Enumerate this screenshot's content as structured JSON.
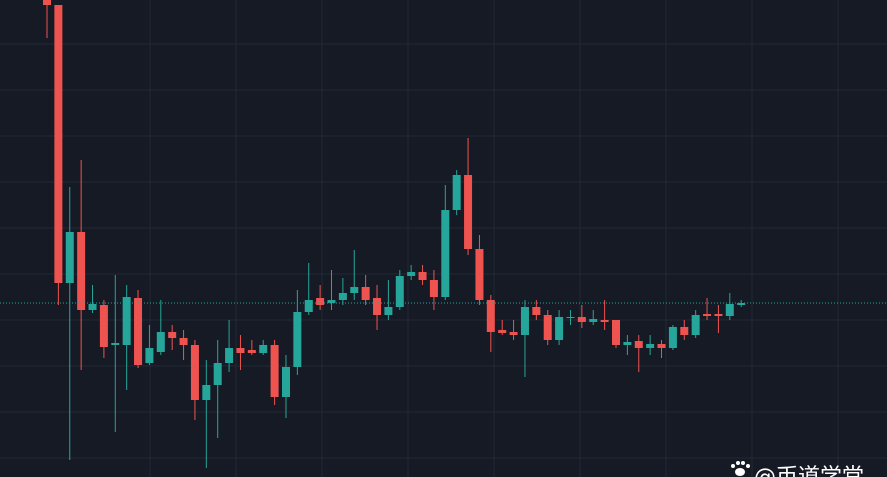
{
  "chart_data": {
    "type": "candlestick",
    "ylim": [
      0,
      477
    ],
    "up_color": "#26a69a",
    "down_color": "#ef5350",
    "open": [
      477,
      472,
      194,
      245,
      167,
      172,
      132,
      132,
      179,
      114,
      125,
      145,
      139,
      132,
      77,
      92,
      114,
      129,
      127,
      124,
      132,
      80,
      110,
      165,
      179,
      174,
      177,
      184,
      190,
      179,
      162,
      170,
      201,
      205,
      197,
      180,
      267,
      302,
      228,
      177,
      147,
      145,
      142,
      170,
      162,
      137,
      159,
      160,
      155,
      157,
      157,
      132,
      136,
      129,
      133,
      129,
      150,
      142,
      163,
      163,
      161,
      172
    ],
    "high": [
      477,
      472,
      290,
      317,
      192,
      177,
      202,
      192,
      187,
      152,
      177,
      152,
      147,
      137,
      117,
      137,
      157,
      142,
      137,
      137,
      137,
      122,
      187,
      214,
      192,
      207,
      199,
      227,
      202,
      192,
      197,
      207,
      212,
      212,
      207,
      292,
      307,
      339,
      242,
      182,
      157,
      157,
      177,
      177,
      167,
      167,
      167,
      172,
      167,
      177,
      157,
      142,
      142,
      142,
      137,
      152,
      157,
      167,
      179,
      172,
      184,
      177
    ],
    "low": [
      439,
      172,
      17,
      107,
      164,
      119,
      45,
      87,
      109,
      112,
      122,
      127,
      117,
      57,
      9,
      39,
      105,
      107,
      122,
      122,
      72,
      59,
      102,
      162,
      167,
      167,
      172,
      177,
      172,
      147,
      157,
      167,
      197,
      192,
      167,
      177,
      262,
      222,
      172,
      125,
      142,
      137,
      100,
      157,
      132,
      132,
      152,
      149,
      152,
      147,
      129,
      122,
      105,
      122,
      119,
      127,
      137,
      139,
      157,
      144,
      157,
      170
    ],
    "close": [
      472,
      194,
      245,
      167,
      173,
      130,
      134,
      180,
      112,
      129,
      145,
      139,
      132,
      77,
      92,
      114,
      129,
      124,
      124,
      132,
      80,
      110,
      165,
      177,
      172,
      177,
      184,
      190,
      177,
      162,
      170,
      201,
      205,
      197,
      180,
      267,
      302,
      228,
      177,
      145,
      144,
      142,
      170,
      162,
      137,
      160,
      160,
      155,
      158,
      155,
      132,
      135,
      129,
      133,
      129,
      150,
      142,
      162,
      161,
      161,
      173,
      174
    ],
    "last_price": 174
  },
  "watermark": "@币道学堂"
}
